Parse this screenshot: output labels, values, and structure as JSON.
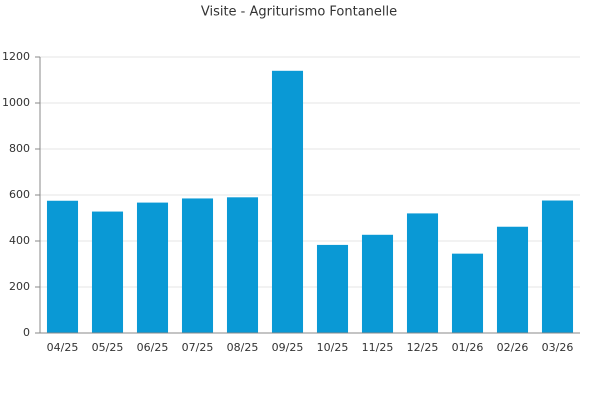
{
  "chart_data": {
    "type": "bar",
    "title": "Visite - Agriturismo Fontanelle",
    "categories": [
      "04/25",
      "05/25",
      "06/25",
      "07/25",
      "08/25",
      "09/25",
      "10/25",
      "11/25",
      "12/25",
      "01/26",
      "02/26",
      "03/26"
    ],
    "values": [
      575,
      528,
      567,
      585,
      590,
      1140,
      383,
      427,
      520,
      345,
      462,
      576
    ],
    "color": "#0a99d5",
    "ylim": [
      0,
      1200
    ],
    "yticks": [
      0,
      200,
      400,
      600,
      800,
      1000,
      1200
    ],
    "grid": true
  }
}
